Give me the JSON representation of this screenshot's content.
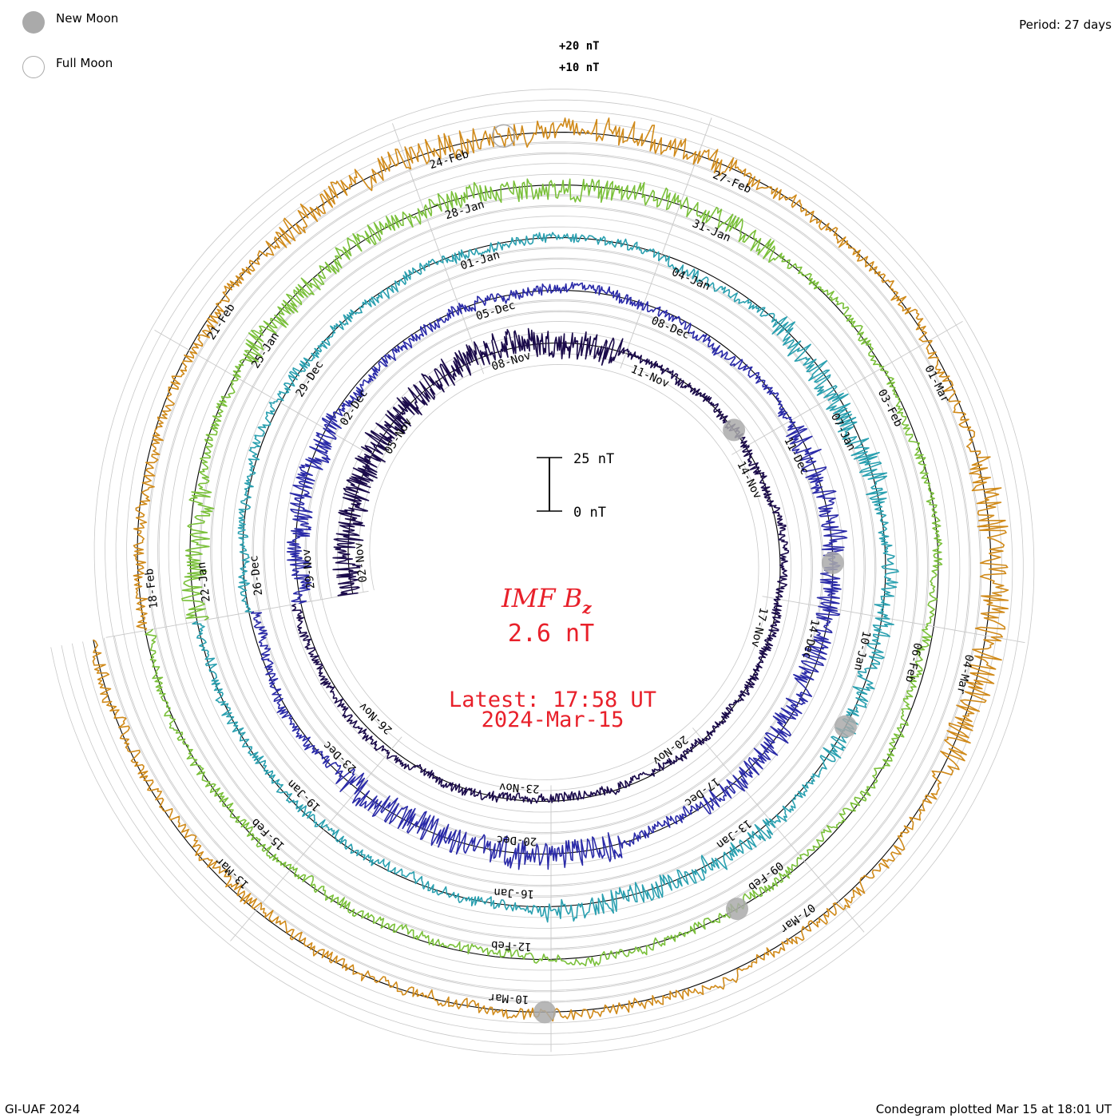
{
  "header": {
    "period": "Period: 27 days"
  },
  "legend": {
    "new_moon_label": "New Moon",
    "full_moon_label": "Full Moon",
    "new_moon_color": "#aaaaaa",
    "full_moon_color": "#aaaaaa"
  },
  "scale_labels": {
    "plus20": "+20 nT",
    "plus10": "+10 nT",
    "bar_top": "25 nT",
    "bar_bottom": "0 nT"
  },
  "center": {
    "quantity": "IMF B",
    "subscript": "z",
    "value": "2.6 nT",
    "latest": "Latest: 17:58 UT",
    "date": "2024-Mar-15",
    "color": "#e8202a"
  },
  "footer": {
    "credit": "GI-UAF 2024",
    "plotted": "Condegram plotted Mar 15 at 18:01 UT"
  },
  "chart_data": {
    "type": "line",
    "period_days": 27,
    "units": "nT",
    "ring_dates": [
      [
        "02-Nov",
        "05-Nov",
        "08-Nov",
        "11-Nov",
        "14-Nov",
        "17-Nov",
        "20-Nov",
        "23-Nov",
        "26-Nov"
      ],
      [
        "29-Nov",
        "02-Dec",
        "05-Dec",
        "08-Dec",
        "11-Dec",
        "14-Dec",
        "17-Dec",
        "20-Dec",
        "23-Dec"
      ],
      [
        "26-Dec",
        "29-Dec",
        "01-Jan",
        "04-Jan",
        "07-Jan",
        "10-Jan",
        "13-Jan",
        "16-Jan",
        "19-Jan"
      ],
      [
        "22-Jan",
        "25-Jan",
        "28-Jan",
        "31-Jan",
        "03-Feb",
        "06-Feb",
        "09-Feb",
        "12-Feb",
        "15-Feb"
      ],
      [
        "18-Feb",
        "21-Feb",
        "24-Feb",
        "27-Feb",
        "01-Mar",
        "04-Mar",
        "07-Mar",
        "10-Mar",
        "13-Mar"
      ]
    ],
    "series": [
      {
        "color": "#1a0a4a",
        "amplitude": 6,
        "bursts": [
          [
            0.13,
            0.2,
            3.2
          ],
          [
            0.24,
            0.06,
            1.6
          ]
        ]
      },
      {
        "color": "#2a2aa8",
        "amplitude": 7,
        "bursts": [
          [
            0.55,
            0.1,
            2.4
          ],
          [
            0.64,
            0.05,
            2.0
          ],
          [
            0.82,
            0.08,
            2.8
          ],
          [
            0.06,
            0.06,
            2.2
          ]
        ]
      },
      {
        "color": "#2aa0b0",
        "amplitude": 7,
        "bursts": [
          [
            0.45,
            0.05,
            2.6
          ],
          [
            0.58,
            0.05,
            2.0
          ],
          [
            0.72,
            0.06,
            2.2
          ]
        ]
      },
      {
        "color": "#7ac03a",
        "amplitude": 7,
        "bursts": [
          [
            0.02,
            0.04,
            2.4
          ],
          [
            0.2,
            0.08,
            2.0
          ],
          [
            0.32,
            0.06,
            2.2
          ]
        ]
      },
      {
        "color": "#d08a1a",
        "amplitude": 8,
        "bursts": [
          [
            0.24,
            0.08,
            2.2
          ],
          [
            0.55,
            0.06,
            2.6
          ],
          [
            0.3,
            0.05,
            1.8
          ]
        ]
      }
    ],
    "moons": [
      {
        "phase": "new",
        "ring": 0,
        "frac": 0.43
      },
      {
        "phase": "new",
        "ring": 1,
        "frac": 0.53
      },
      {
        "phase": "new",
        "ring": 2,
        "frac": 0.61
      },
      {
        "phase": "new",
        "ring": 3,
        "frac": 0.7
      },
      {
        "phase": "new",
        "ring": 4,
        "frac": 0.78
      },
      {
        "phase": "full",
        "ring": 4,
        "frac": 0.26
      }
    ]
  }
}
